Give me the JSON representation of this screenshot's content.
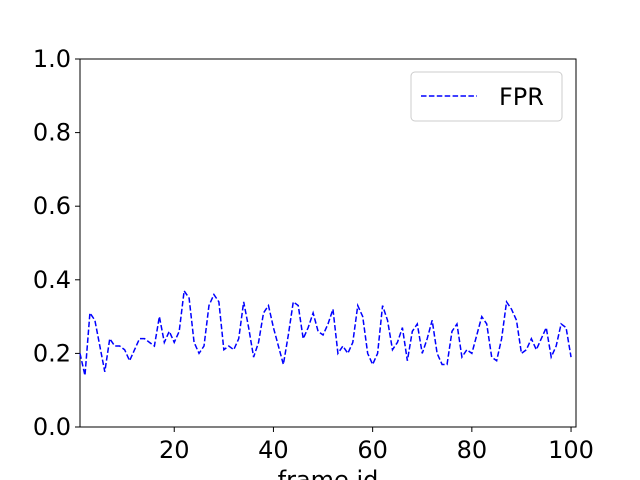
{
  "chart_data": {
    "type": "line",
    "x": [
      1,
      2,
      3,
      4,
      5,
      6,
      7,
      8,
      9,
      10,
      11,
      12,
      13,
      14,
      15,
      16,
      17,
      18,
      19,
      20,
      21,
      22,
      23,
      24,
      25,
      26,
      27,
      28,
      29,
      30,
      31,
      32,
      33,
      34,
      35,
      36,
      37,
      38,
      39,
      40,
      41,
      42,
      43,
      44,
      45,
      46,
      47,
      48,
      49,
      50,
      51,
      52,
      53,
      54,
      55,
      56,
      57,
      58,
      59,
      60,
      61,
      62,
      63,
      64,
      65,
      66,
      67,
      68,
      69,
      70,
      71,
      72,
      73,
      74,
      75,
      76,
      77,
      78,
      79,
      80,
      81,
      82,
      83,
      84,
      85,
      86,
      87,
      88,
      89,
      90,
      91,
      92,
      93,
      94,
      95,
      96,
      97,
      98,
      99,
      100
    ],
    "series": [
      {
        "name": "FPR",
        "color": "#0000ff",
        "values": [
          0.2,
          0.14,
          0.31,
          0.29,
          0.22,
          0.15,
          0.24,
          0.22,
          0.22,
          0.21,
          0.18,
          0.21,
          0.24,
          0.24,
          0.23,
          0.22,
          0.3,
          0.23,
          0.26,
          0.23,
          0.26,
          0.37,
          0.35,
          0.23,
          0.2,
          0.22,
          0.33,
          0.36,
          0.34,
          0.21,
          0.22,
          0.21,
          0.24,
          0.34,
          0.27,
          0.19,
          0.23,
          0.31,
          0.33,
          0.27,
          0.22,
          0.17,
          0.25,
          0.34,
          0.33,
          0.24,
          0.27,
          0.31,
          0.26,
          0.25,
          0.28,
          0.32,
          0.2,
          0.22,
          0.2,
          0.23,
          0.33,
          0.3,
          0.2,
          0.17,
          0.2,
          0.33,
          0.29,
          0.21,
          0.23,
          0.27,
          0.18,
          0.26,
          0.28,
          0.2,
          0.24,
          0.29,
          0.2,
          0.17,
          0.17,
          0.26,
          0.28,
          0.19,
          0.21,
          0.2,
          0.25,
          0.3,
          0.28,
          0.19,
          0.18,
          0.24,
          0.34,
          0.32,
          0.29,
          0.2,
          0.21,
          0.24,
          0.21,
          0.24,
          0.27,
          0.19,
          0.22,
          0.28,
          0.27,
          0.19
        ]
      }
    ],
    "xlabel": "frame id",
    "xlim": [
      1,
      101
    ],
    "xticks": [
      20,
      40,
      60,
      80,
      100
    ],
    "ylim": [
      0,
      1
    ],
    "yticks": [
      {
        "value": 0,
        "label": "0.0"
      },
      {
        "value": 0.2,
        "label": "0.2"
      },
      {
        "value": 0.4,
        "label": "0.4"
      },
      {
        "value": 0.6,
        "label": "0.6"
      },
      {
        "value": 0.8,
        "label": "0.8"
      },
      {
        "value": 1,
        "label": "1.0"
      }
    ],
    "legend": "upper right"
  }
}
